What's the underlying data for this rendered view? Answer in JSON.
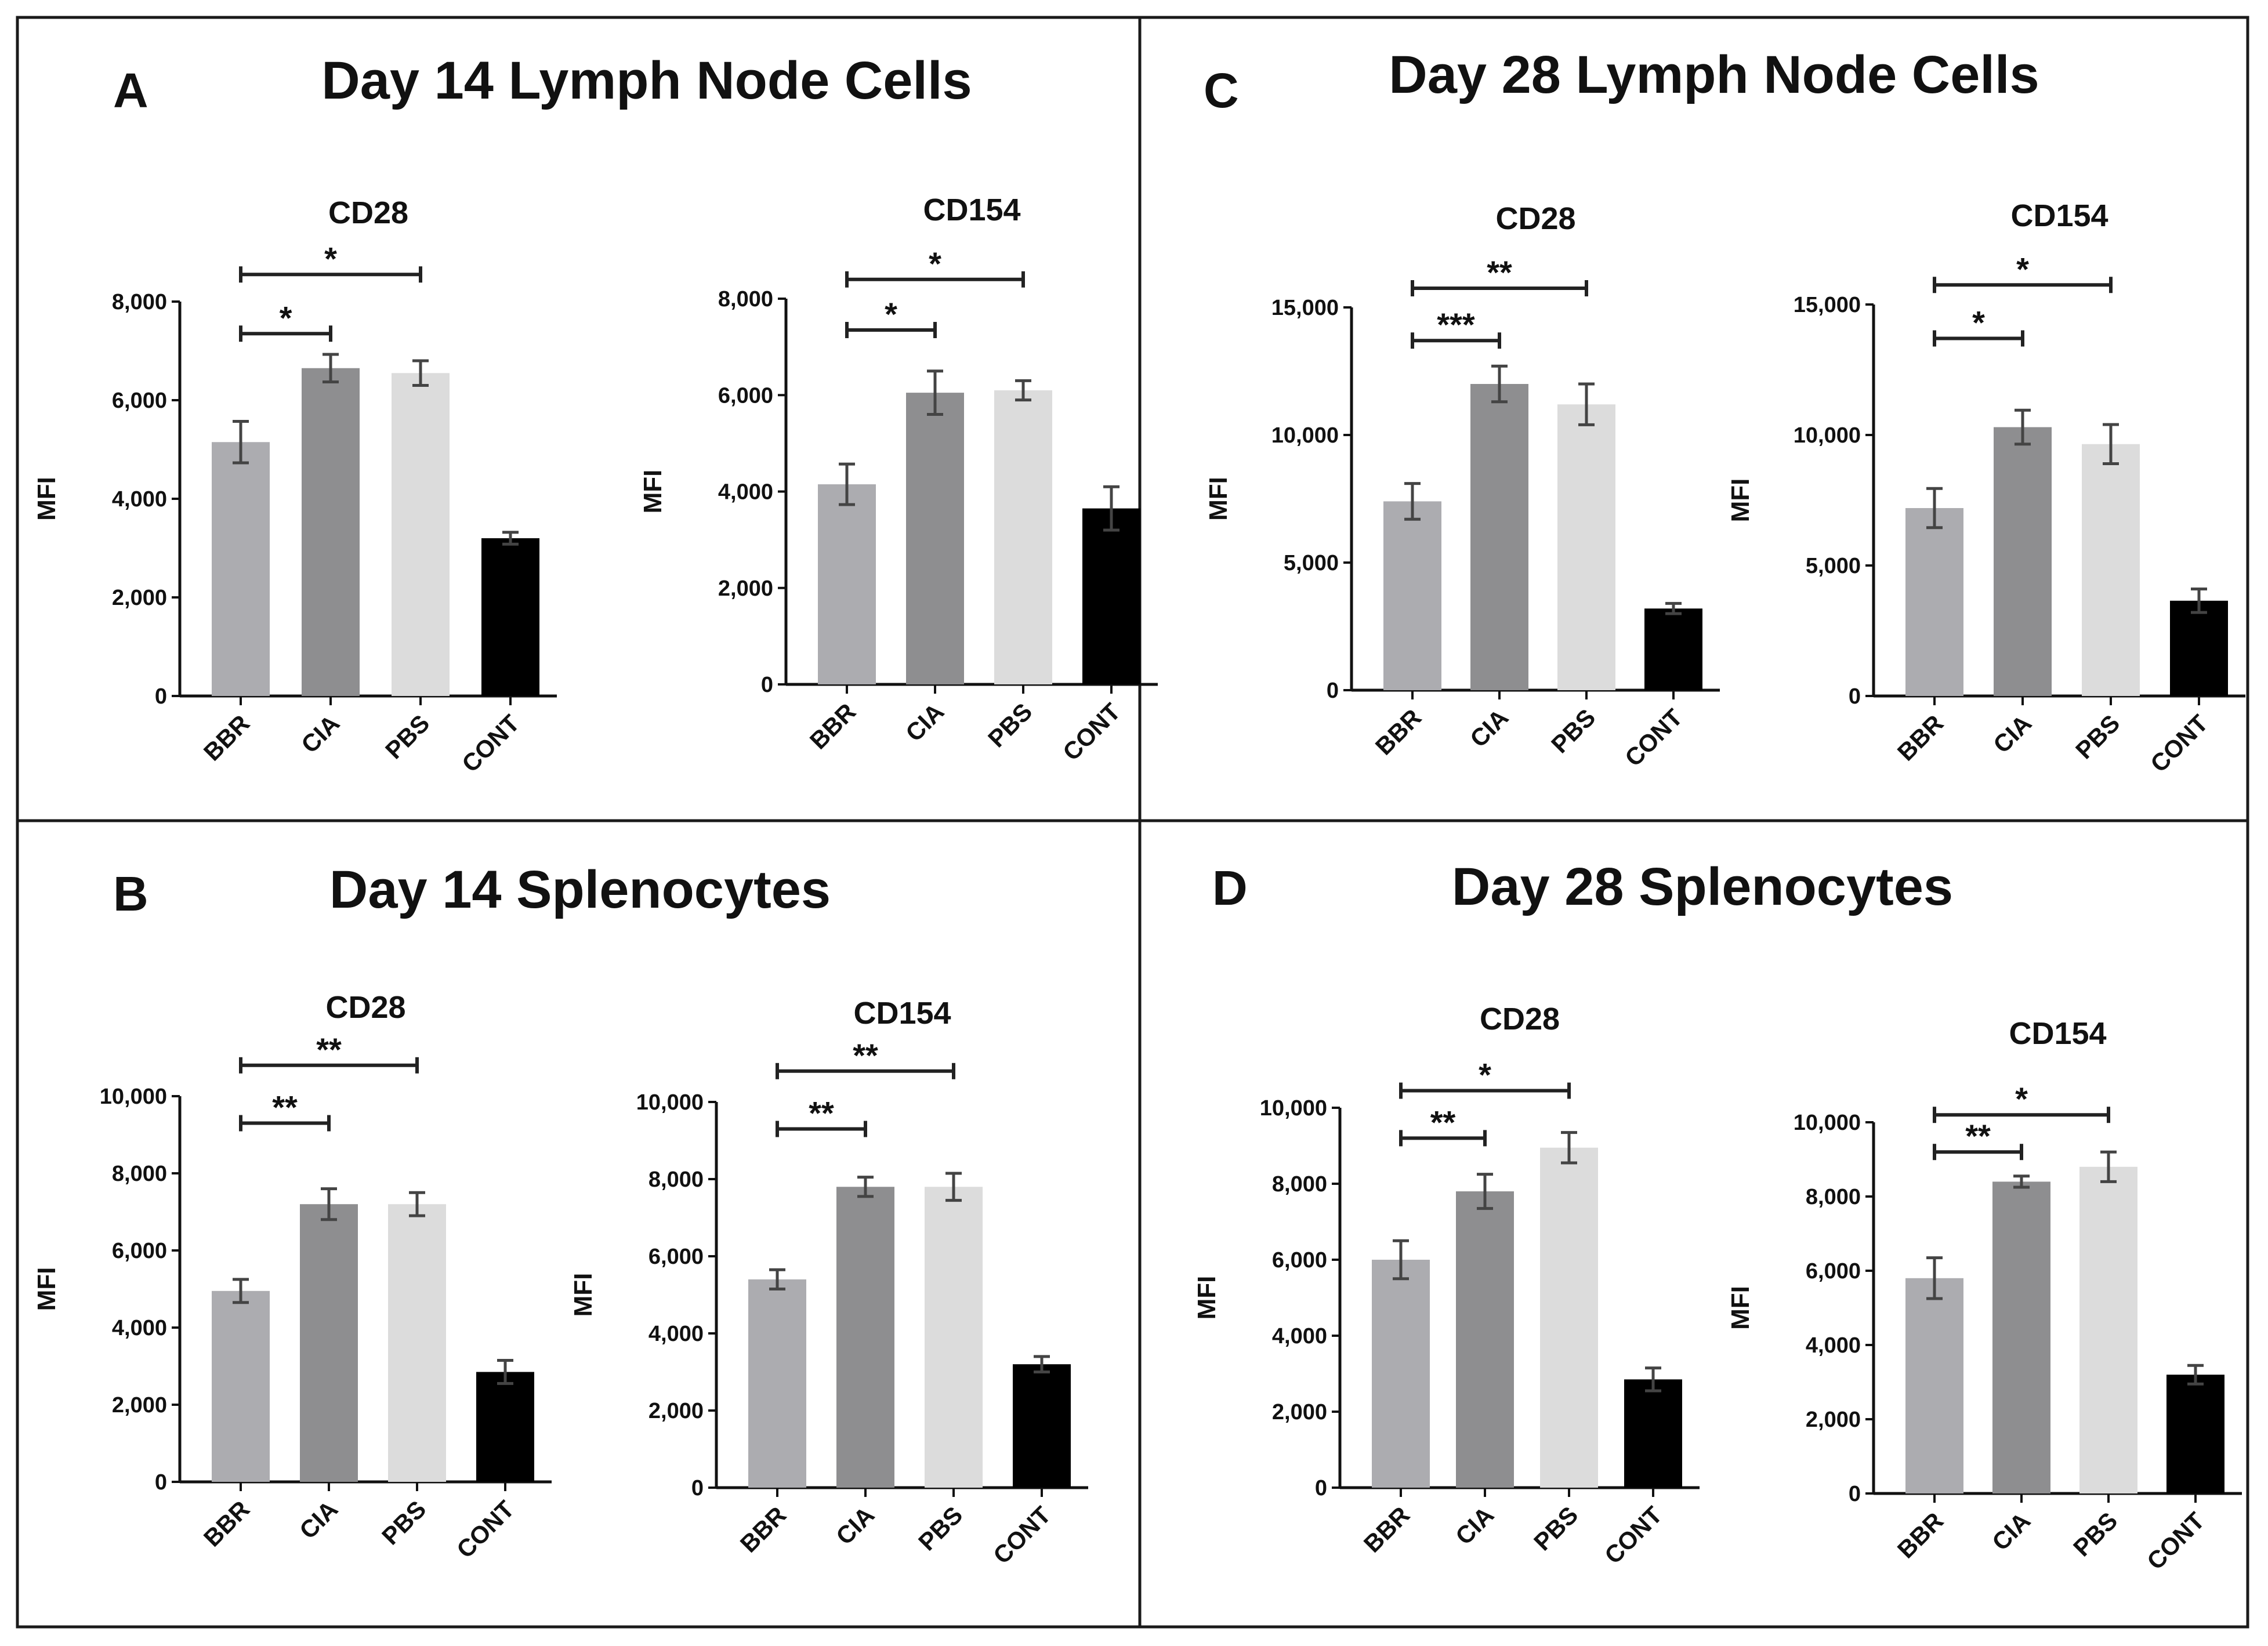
{
  "figure": {
    "panels": [
      {
        "letter": "A",
        "title": "Day 14 Lymph Node Cells",
        "charts": [
          {
            "type": "bar",
            "title": "CD28",
            "ylabel": "MFI",
            "xlabel": "",
            "categories": [
              "BBR",
              "CIA",
              "PBS",
              "CONT"
            ],
            "values": [
              5150,
              6650,
              6550,
              3200
            ],
            "errors": [
              420,
              280,
              250,
              120
            ],
            "ylim": [
              0,
              8000
            ],
            "yticks": [
              0,
              2000,
              4000,
              6000,
              8000
            ],
            "ytick_labels": [
              "0",
              "2,000",
              "4,000",
              "6,000",
              "8,000"
            ],
            "colors": [
              "#acacb0",
              "#8e8e90",
              "#dcdcdc",
              "#000000"
            ],
            "significance": [
              {
                "from": "BBR",
                "to": "CIA",
                "label": "*",
                "level": 7350
              },
              {
                "from": "BBR",
                "to": "PBS",
                "label": "*",
                "level": 8550
              }
            ]
          },
          {
            "type": "bar",
            "title": "CD154",
            "ylabel": "MFI",
            "xlabel": "",
            "categories": [
              "BBR",
              "CIA",
              "PBS",
              "CONT"
            ],
            "values": [
              4150,
              6050,
              6100,
              3650
            ],
            "errors": [
              420,
              450,
              200,
              450
            ],
            "ylim": [
              0,
              8000
            ],
            "yticks": [
              0,
              2000,
              4000,
              6000,
              8000
            ],
            "ytick_labels": [
              "0",
              "2,000",
              "4,000",
              "6,000",
              "8,000"
            ],
            "colors": [
              "#acacb0",
              "#8e8e90",
              "#dcdcdc",
              "#000000"
            ],
            "significance": [
              {
                "from": "BBR",
                "to": "CIA",
                "label": "*",
                "level": 7350
              },
              {
                "from": "BBR",
                "to": "PBS",
                "label": "*",
                "level": 8400
              }
            ]
          }
        ]
      },
      {
        "letter": "C",
        "title": "Day 28 Lymph Node Cells",
        "charts": [
          {
            "type": "bar",
            "title": "CD28",
            "ylabel": "MFI",
            "xlabel": "",
            "categories": [
              "BBR",
              "CIA",
              "PBS",
              "CONT"
            ],
            "values": [
              7400,
              12000,
              11200,
              3200
            ],
            "errors": [
              700,
              700,
              800,
              200
            ],
            "ylim": [
              0,
              15000
            ],
            "yticks": [
              0,
              5000,
              10000,
              15000
            ],
            "ytick_labels": [
              "0",
              "5,000",
              "10,000",
              "15,000"
            ],
            "colors": [
              "#acacb0",
              "#8e8e90",
              "#dcdcdc",
              "#000000"
            ],
            "significance": [
              {
                "from": "BBR",
                "to": "CIA",
                "label": "***",
                "level": 13700
              },
              {
                "from": "BBR",
                "to": "PBS",
                "label": "**",
                "level": 15750
              }
            ]
          },
          {
            "type": "bar",
            "title": "CD154",
            "ylabel": "MFI",
            "xlabel": "",
            "categories": [
              "BBR",
              "CIA",
              "PBS",
              "CONT"
            ],
            "values": [
              7200,
              10300,
              9650,
              3650
            ],
            "errors": [
              750,
              650,
              750,
              450
            ],
            "ylim": [
              0,
              15000
            ],
            "yticks": [
              0,
              5000,
              10000,
              15000
            ],
            "ytick_labels": [
              "0",
              "5,000",
              "10,000",
              "15,000"
            ],
            "colors": [
              "#acacb0",
              "#8e8e90",
              "#dcdcdc",
              "#000000"
            ],
            "significance": [
              {
                "from": "BBR",
                "to": "CIA",
                "label": "*",
                "level": 13700
              },
              {
                "from": "BBR",
                "to": "PBS",
                "label": "*",
                "level": 15750
              }
            ]
          }
        ]
      },
      {
        "letter": "B",
        "title": "Day 14 Splenocytes",
        "charts": [
          {
            "type": "bar",
            "title": "CD28",
            "ylabel": "MFI",
            "xlabel": "",
            "categories": [
              "BBR",
              "CIA",
              "PBS",
              "CONT"
            ],
            "values": [
              4950,
              7200,
              7200,
              2850
            ],
            "errors": [
              300,
              400,
              300,
              300
            ],
            "ylim": [
              0,
              10000
            ],
            "yticks": [
              0,
              2000,
              4000,
              6000,
              8000,
              10000
            ],
            "ytick_labels": [
              "0",
              "2,000",
              "4,000",
              "6,000",
              "8,000",
              "10,000"
            ],
            "colors": [
              "#acacb0",
              "#8e8e90",
              "#dcdcdc",
              "#000000"
            ],
            "significance": [
              {
                "from": "BBR",
                "to": "CIA",
                "label": "**",
                "level": 9300
              },
              {
                "from": "BBR",
                "to": "PBS",
                "label": "**",
                "level": 10800
              }
            ]
          },
          {
            "type": "bar",
            "title": "CD154",
            "ylabel": "MFI",
            "xlabel": "",
            "categories": [
              "BBR",
              "CIA",
              "PBS",
              "CONT"
            ],
            "values": [
              5400,
              7800,
              7800,
              3200
            ],
            "errors": [
              250,
              250,
              350,
              200
            ],
            "ylim": [
              0,
              10000
            ],
            "yticks": [
              0,
              2000,
              4000,
              6000,
              8000,
              10000
            ],
            "ytick_labels": [
              "0",
              "2,000",
              "4,000",
              "6,000",
              "8,000",
              "10,000"
            ],
            "colors": [
              "#acacb0",
              "#8e8e90",
              "#dcdcdc",
              "#000000"
            ],
            "significance": [
              {
                "from": "BBR",
                "to": "CIA",
                "label": "**",
                "level": 9300
              },
              {
                "from": "BBR",
                "to": "PBS",
                "label": "**",
                "level": 10800
              }
            ]
          }
        ]
      },
      {
        "letter": "D",
        "title": "Day 28 Splenocytes",
        "charts": [
          {
            "type": "bar",
            "title": "CD28",
            "ylabel": "MFI",
            "xlabel": "",
            "categories": [
              "BBR",
              "CIA",
              "PBS",
              "CONT"
            ],
            "values": [
              6000,
              7800,
              8950,
              2850
            ],
            "errors": [
              500,
              450,
              400,
              300
            ],
            "ylim": [
              0,
              10000
            ],
            "yticks": [
              0,
              2000,
              4000,
              6000,
              8000,
              10000
            ],
            "ytick_labels": [
              "0",
              "2,000",
              "4,000",
              "6,000",
              "8,000",
              "10,000"
            ],
            "colors": [
              "#acacb0",
              "#8e8e90",
              "#dcdcdc",
              "#000000"
            ],
            "significance": [
              {
                "from": "BBR",
                "to": "CIA",
                "label": "**",
                "level": 9200
              },
              {
                "from": "BBR",
                "to": "PBS",
                "label": "*",
                "level": 10450
              }
            ]
          },
          {
            "type": "bar",
            "title": "CD154",
            "ylabel": "MFI",
            "xlabel": "",
            "categories": [
              "BBR",
              "CIA",
              "PBS",
              "CONT"
            ],
            "values": [
              5800,
              8400,
              8800,
              3200
            ],
            "errors": [
              550,
              150,
              400,
              250
            ],
            "ylim": [
              0,
              10000
            ],
            "yticks": [
              0,
              2000,
              4000,
              6000,
              8000,
              10000
            ],
            "ytick_labels": [
              "0",
              "2,000",
              "4,000",
              "6,000",
              "8,000",
              "10,000"
            ],
            "colors": [
              "#acacb0",
              "#8e8e90",
              "#dcdcdc",
              "#000000"
            ],
            "significance": [
              {
                "from": "BBR",
                "to": "CIA",
                "label": "**",
                "level": 9200
              },
              {
                "from": "BBR",
                "to": "PBS",
                "label": "*",
                "level": 10200
              }
            ]
          }
        ]
      }
    ]
  },
  "chart_data": [
    {
      "type": "bar",
      "panel": "A",
      "title": "CD28",
      "ylabel": "MFI",
      "xlabel": "",
      "categories": [
        "BBR",
        "CIA",
        "PBS",
        "CONT"
      ],
      "values": [
        5150,
        6650,
        6550,
        3200
      ],
      "ylim": [
        0,
        8000
      ]
    },
    {
      "type": "bar",
      "panel": "A",
      "title": "CD154",
      "ylabel": "MFI",
      "xlabel": "",
      "categories": [
        "BBR",
        "CIA",
        "PBS",
        "CONT"
      ],
      "values": [
        4150,
        6050,
        6100,
        3650
      ],
      "ylim": [
        0,
        8000
      ]
    },
    {
      "type": "bar",
      "panel": "C",
      "title": "CD28",
      "ylabel": "MFI",
      "xlabel": "",
      "categories": [
        "BBR",
        "CIA",
        "PBS",
        "CONT"
      ],
      "values": [
        7400,
        12000,
        11200,
        3200
      ],
      "ylim": [
        0,
        15000
      ]
    },
    {
      "type": "bar",
      "panel": "C",
      "title": "CD154",
      "ylabel": "MFI",
      "xlabel": "",
      "categories": [
        "BBR",
        "CIA",
        "PBS",
        "CONT"
      ],
      "values": [
        7200,
        10300,
        9650,
        3650
      ],
      "ylim": [
        0,
        15000
      ]
    },
    {
      "type": "bar",
      "panel": "B",
      "title": "CD28",
      "ylabel": "MFI",
      "xlabel": "",
      "categories": [
        "BBR",
        "CIA",
        "PBS",
        "CONT"
      ],
      "values": [
        4950,
        7200,
        7200,
        2850
      ],
      "ylim": [
        0,
        10000
      ]
    },
    {
      "type": "bar",
      "panel": "B",
      "title": "CD154",
      "ylabel": "MFI",
      "xlabel": "",
      "categories": [
        "BBR",
        "CIA",
        "PBS",
        "CONT"
      ],
      "values": [
        5400,
        7800,
        7800,
        3200
      ],
      "ylim": [
        0,
        10000
      ]
    },
    {
      "type": "bar",
      "panel": "D",
      "title": "CD28",
      "ylabel": "MFI",
      "xlabel": "",
      "categories": [
        "BBR",
        "CIA",
        "PBS",
        "CONT"
      ],
      "values": [
        6000,
        7800,
        8950,
        2850
      ],
      "ylim": [
        0,
        10000
      ]
    },
    {
      "type": "bar",
      "panel": "D",
      "title": "CD154",
      "ylabel": "MFI",
      "xlabel": "",
      "categories": [
        "BBR",
        "CIA",
        "PBS",
        "CONT"
      ],
      "values": [
        5800,
        8400,
        8800,
        3200
      ],
      "ylim": [
        0,
        10000
      ]
    }
  ]
}
